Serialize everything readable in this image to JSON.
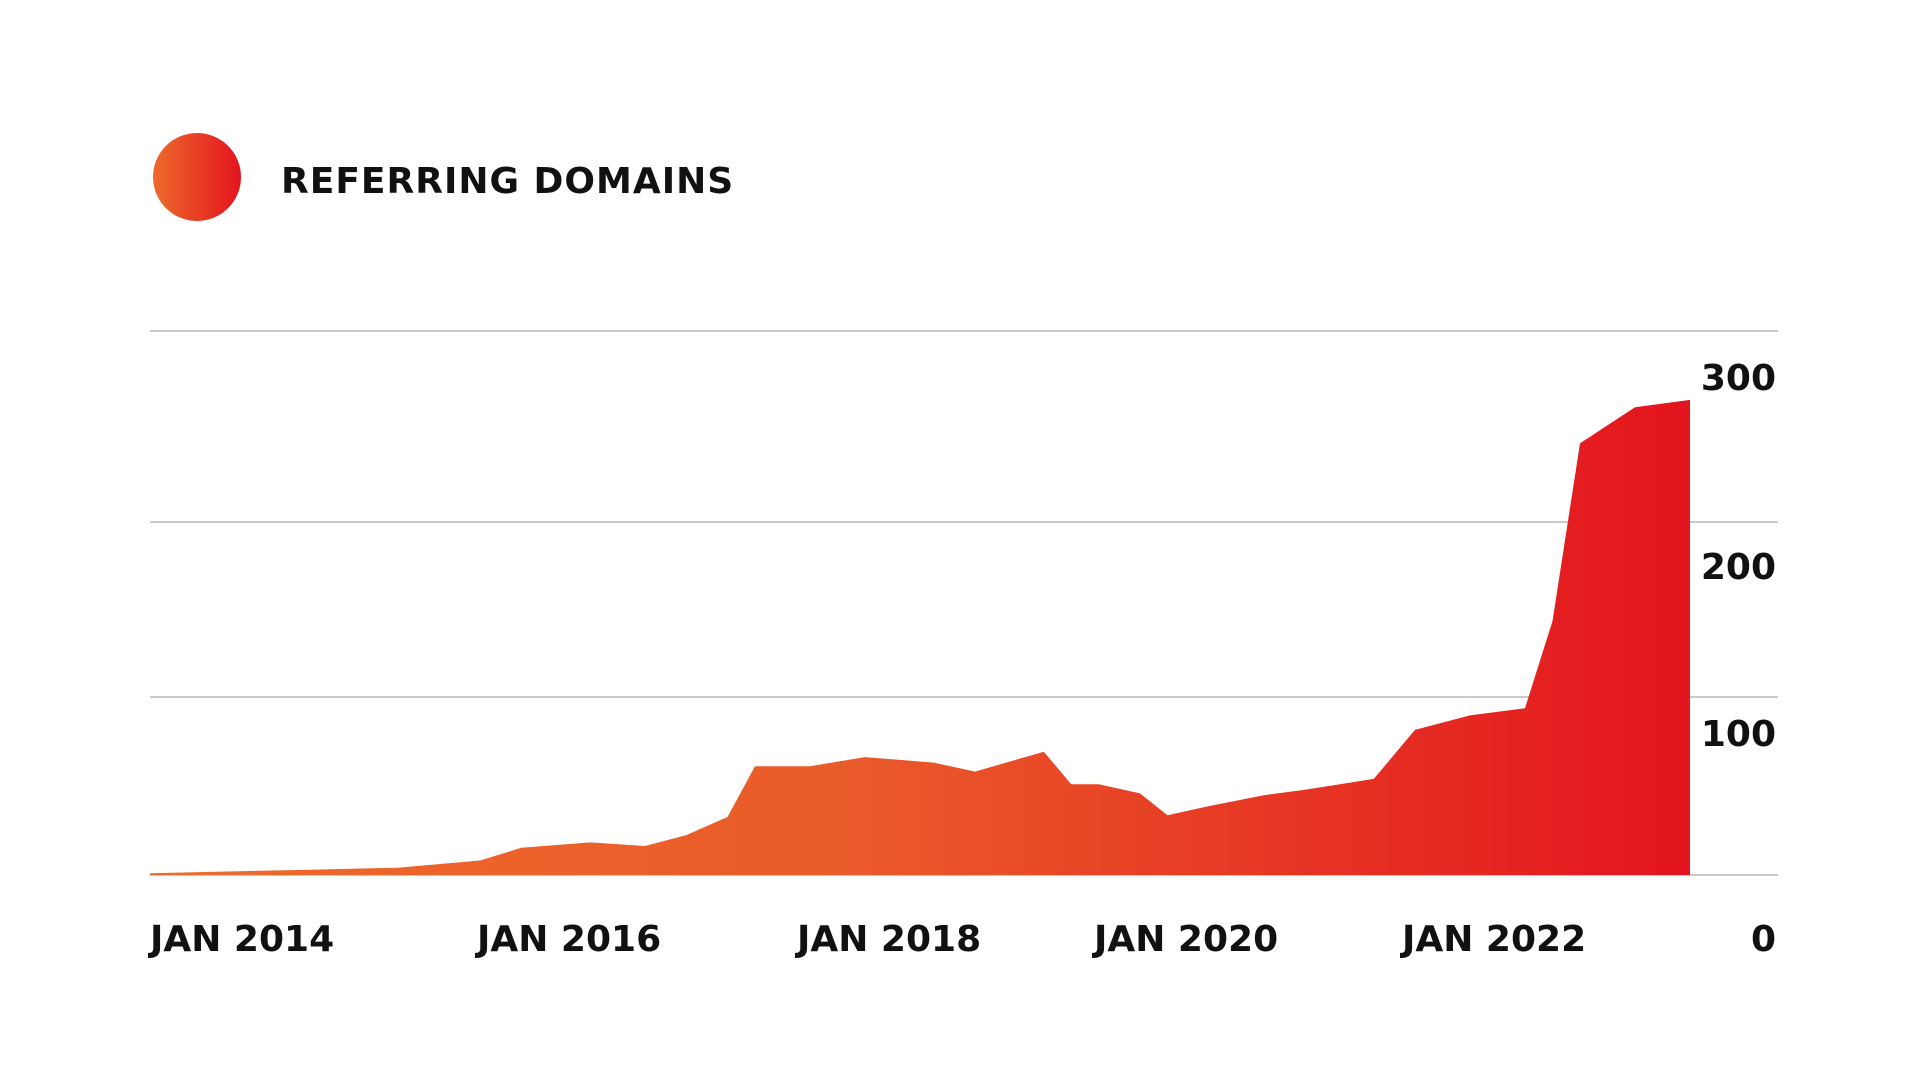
{
  "legend": {
    "label": "REFERRING DOMAINS"
  },
  "colors": {
    "gradient_start": "#ed6a2c",
    "gradient_end": "#e3141e",
    "grid": "#b9b9b9",
    "text": "#111111"
  },
  "chart_data": {
    "type": "area",
    "title": "",
    "xlabel": "",
    "ylabel": "",
    "legend_position": "top-left",
    "grid": true,
    "x_ticks": [
      "JAN 2014",
      "JAN 2016",
      "JAN 2018",
      "JAN 2020",
      "JAN 2022"
    ],
    "y_ticks": [
      "300",
      "200",
      "100",
      "0"
    ],
    "x_range": [
      "2014-01",
      "2023-05"
    ],
    "y_range": [
      0,
      300
    ],
    "series": [
      {
        "name": "REFERRING DOMAINS",
        "points": [
          [
            "2014-01",
            1
          ],
          [
            "2014-07",
            2
          ],
          [
            "2015-01",
            3
          ],
          [
            "2015-07",
            4
          ],
          [
            "2015-10",
            6
          ],
          [
            "2016-01",
            8
          ],
          [
            "2016-04",
            15
          ],
          [
            "2016-09",
            18
          ],
          [
            "2017-01",
            16
          ],
          [
            "2017-04",
            22
          ],
          [
            "2017-07",
            32
          ],
          [
            "2017-09",
            60
          ],
          [
            "2018-01",
            60
          ],
          [
            "2018-05",
            65
          ],
          [
            "2018-10",
            62
          ],
          [
            "2019-01",
            57
          ],
          [
            "2019-06",
            68
          ],
          [
            "2019-08",
            50
          ],
          [
            "2019-10",
            50
          ],
          [
            "2020-01",
            45
          ],
          [
            "2020-03",
            33
          ],
          [
            "2020-06",
            38
          ],
          [
            "2020-10",
            44
          ],
          [
            "2021-01",
            47
          ],
          [
            "2021-06",
            53
          ],
          [
            "2021-09",
            80
          ],
          [
            "2022-01",
            88
          ],
          [
            "2022-05",
            92
          ],
          [
            "2022-07",
            140
          ],
          [
            "2022-09",
            238
          ],
          [
            "2023-01",
            258
          ],
          [
            "2023-05",
            262
          ]
        ]
      }
    ]
  }
}
